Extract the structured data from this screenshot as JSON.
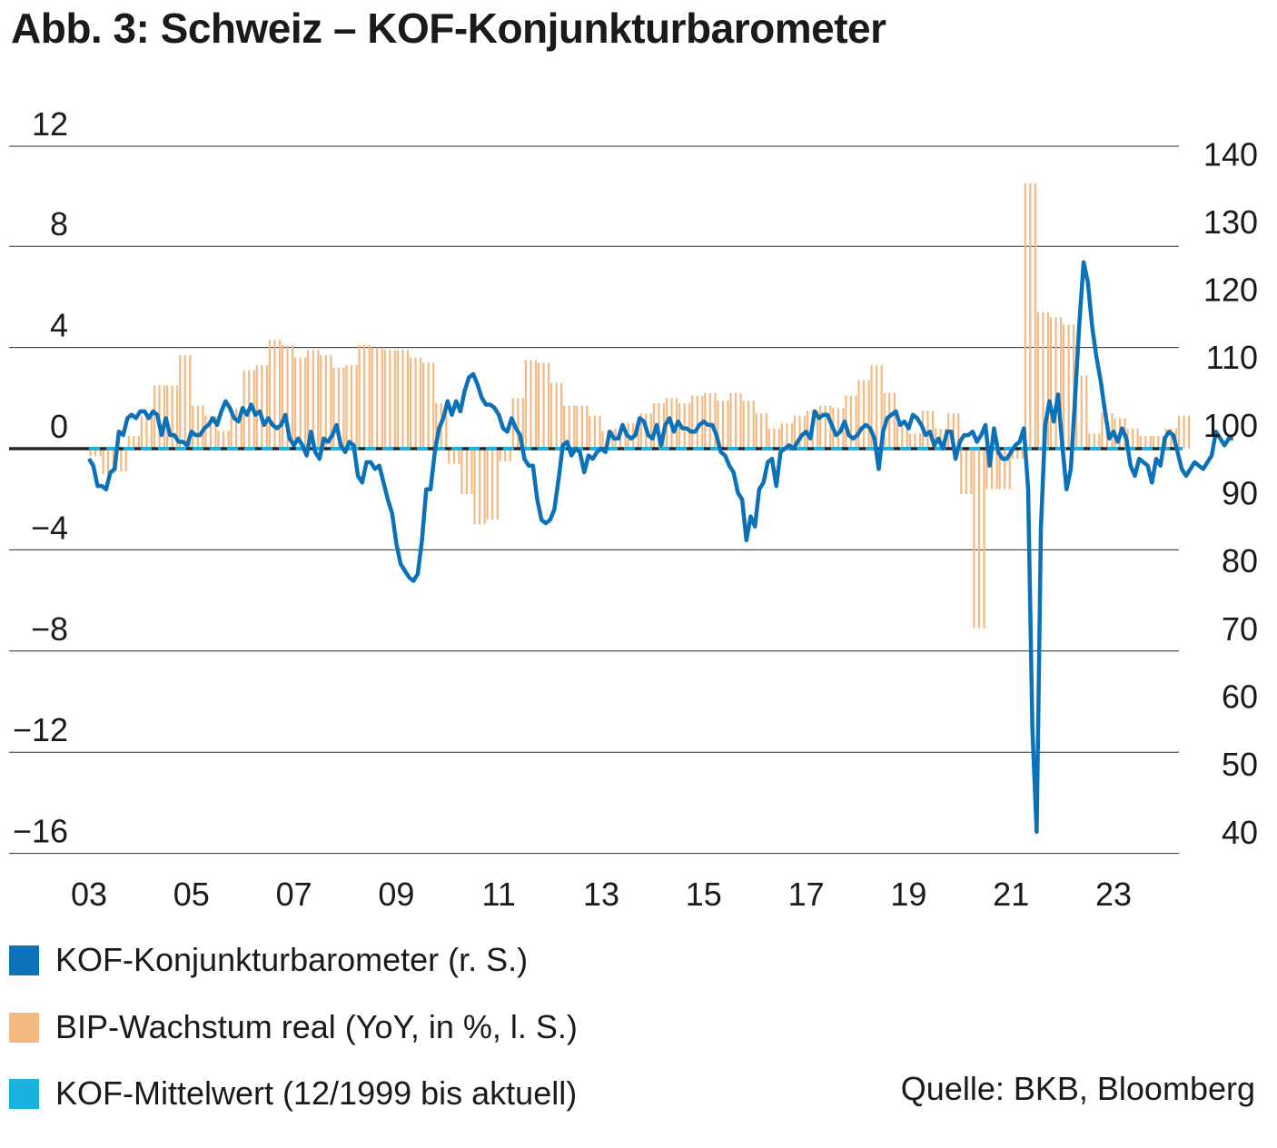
{
  "title": "Abb. 3: Schweiz – KOF-Konjunkturbarometer",
  "source": "Quelle: BKB, Bloomberg",
  "legend": [
    {
      "label": "KOF-Konjunkturbarometer (r. S.)",
      "color": "#0b72b9"
    },
    {
      "label": "BIP-Wachstum real (YoY, in %, l. S.)",
      "color": "#f4b982"
    },
    {
      "label": "KOF-Mittelwert (12/1999 bis aktuell)",
      "color": "#1ab3e0"
    }
  ],
  "chart_data": {
    "type": "bar+line",
    "left_axis": {
      "label": "BIP-Wachstum real (YoY, in %)",
      "ticks": [
        "12",
        "8",
        "4",
        "0",
        "−4",
        "−8",
        "−12",
        "−16"
      ],
      "tick_values": [
        12,
        8,
        4,
        0,
        -4,
        -8,
        -12,
        -16
      ],
      "range": [
        -16,
        12
      ]
    },
    "right_axis": {
      "label": "KOF-Konjunkturbarometer",
      "ticks": [
        "140",
        "130",
        "120",
        "110",
        "100",
        "90",
        "80",
        "70",
        "60",
        "50",
        "40"
      ],
      "tick_values": [
        140,
        130,
        120,
        110,
        100,
        90,
        80,
        70,
        60,
        50,
        40
      ],
      "range": [
        40,
        140
      ]
    },
    "x_ticks": [
      "03",
      "05",
      "07",
      "09",
      "11",
      "13",
      "15",
      "17",
      "19",
      "21",
      "23"
    ],
    "x_tick_years": [
      2003,
      2005,
      2007,
      2009,
      2011,
      2013,
      2015,
      2017,
      2019,
      2021,
      2023
    ],
    "x_range": [
      2003,
      2024.3
    ],
    "kof_mean": 96.5,
    "gdp_quarterly": {
      "name": "BIP-Wachstum real (YoY, in %, l. S.)",
      "start": 2003.0,
      "step": 0.25,
      "values": [
        -0.3,
        -1.0,
        -0.9,
        0.5,
        1.3,
        2.5,
        2.5,
        3.7,
        1.7,
        1.3,
        0.7,
        1.6,
        3.1,
        3.3,
        4.3,
        4.1,
        3.6,
        3.9,
        3.7,
        3.2,
        3.3,
        4.1,
        4.0,
        3.9,
        3.9,
        3.6,
        3.4,
        1.8,
        -0.6,
        -1.8,
        -3.0,
        -2.8,
        -0.5,
        2.0,
        3.5,
        3.4,
        2.6,
        1.7,
        1.7,
        1.3,
        0.7,
        0.8,
        1.0,
        1.4,
        1.8,
        2.0,
        1.8,
        2.1,
        2.2,
        1.9,
        2.2,
        1.9,
        1.4,
        0.8,
        1.0,
        1.3,
        1.5,
        1.7,
        1.6,
        2.1,
        2.7,
        3.3,
        2.2,
        1.0,
        0.6,
        1.5,
        0.8,
        1.4,
        -1.8,
        -7.1,
        -1.6,
        -1.6,
        -0.4,
        10.5,
        5.4,
        5.2,
        4.9,
        2.9,
        0.6,
        1.4,
        1.2,
        0.8,
        0.5,
        0.5,
        0.8,
        1.3
      ]
    },
    "kof_monthly": {
      "name": "KOF-Konjunkturbarometer (r. S.)",
      "start": 2003.0,
      "step": 0.0833333,
      "values": [
        95.0,
        94.0,
        91.0,
        91.0,
        90.5,
        93.0,
        93.5,
        99.0,
        98.5,
        101.0,
        101.5,
        101.0,
        102.0,
        102.0,
        101.0,
        102.0,
        101.5,
        98.5,
        101.0,
        98.5,
        98.5,
        97.5,
        97.5,
        97.0,
        99.0,
        98.5,
        98.5,
        99.5,
        100.0,
        101.0,
        100.0,
        102.0,
        103.5,
        102.5,
        101.0,
        100.5,
        102.5,
        101.5,
        103.0,
        101.5,
        102.0,
        100.0,
        101.0,
        100.0,
        99.5,
        100.0,
        101.5,
        98.0,
        97.0,
        98.0,
        97.0,
        95.5,
        99.0,
        96.0,
        95.0,
        98.0,
        97.5,
        98.5,
        100.0,
        97.0,
        96.0,
        97.5,
        97.0,
        92.5,
        91.5,
        94.5,
        94.5,
        93.5,
        94.0,
        91.5,
        89.0,
        87.0,
        82.5,
        79.5,
        78.5,
        77.5,
        77.0,
        78.0,
        83.0,
        90.5,
        90.5,
        96.0,
        99.5,
        101.0,
        103.5,
        101.5,
        103.5,
        102.0,
        105.0,
        107.0,
        107.5,
        106.0,
        104.0,
        103.0,
        103.0,
        102.5,
        101.5,
        99.5,
        99.0,
        101.0,
        99.5,
        98.5,
        95.0,
        94.0,
        94.0,
        89.0,
        86.0,
        85.5,
        86.0,
        87.5,
        92.0,
        97.0,
        97.5,
        95.5,
        96.5,
        96.0,
        93.0,
        95.5,
        95.0,
        96.0,
        96.5,
        96.0,
        99.0,
        98.0,
        98.0,
        100.0,
        98.5,
        98.0,
        98.5,
        101.0,
        100.5,
        98.5,
        98.0,
        100.0,
        97.0,
        100.0,
        101.0,
        99.0,
        100.5,
        99.5,
        99.5,
        99.0,
        99.0,
        100.0,
        100.5,
        100.0,
        100.0,
        98.5,
        96.0,
        95.5,
        94.0,
        93.0,
        90.0,
        89.0,
        83.0,
        86.5,
        85.0,
        90.5,
        91.5,
        94.5,
        95.0,
        91.0,
        96.0,
        96.5,
        97.0,
        96.5,
        97.5,
        98.5,
        99.0,
        98.0,
        102.0,
        101.0,
        101.5,
        101.5,
        100.0,
        98.5,
        99.0,
        100.5,
        98.5,
        98.0,
        98.5,
        99.5,
        100.0,
        99.5,
        98.0,
        93.5,
        99.0,
        101.0,
        101.5,
        102.0,
        100.0,
        100.5,
        99.5,
        101.5,
        101.0,
        100.0,
        98.5,
        99.0,
        97.0,
        98.0,
        96.5,
        99.0,
        99.0,
        95.0,
        97.5,
        98.5,
        98.5,
        99.0,
        97.5,
        98.5,
        100.0,
        94.0,
        99.5,
        96.0,
        95.0,
        95.0,
        96.0,
        97.0,
        97.5,
        99.5,
        90.5,
        55.0,
        40.0,
        85.0,
        100.0,
        103.5,
        100.5,
        104.5,
        97.0,
        90.5,
        93.5,
        104.0,
        115.0,
        124.0,
        121.0,
        114.5,
        110.0,
        106.5,
        102.0,
        98.0,
        99.0,
        97.5,
        99.5,
        98.0,
        94.0,
        92.5,
        95.0,
        94.5,
        94.0,
        91.5,
        95.0,
        94.0,
        98.0,
        99.0,
        98.5,
        96.0,
        93.5,
        92.5,
        93.5,
        94.5,
        94.0,
        93.5,
        94.5,
        95.5,
        99.0,
        98.0,
        97.0,
        98.0,
        98.0
      ]
    }
  }
}
